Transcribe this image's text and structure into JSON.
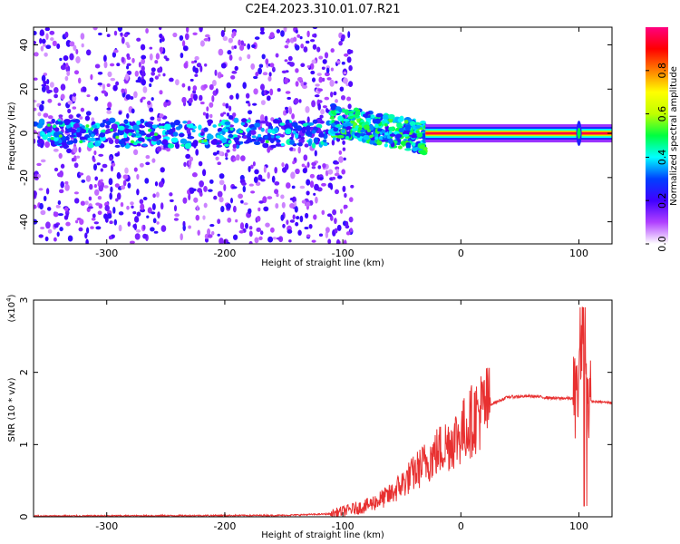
{
  "title": "C2E4.2023.310.01.07.R21",
  "chart_data": [
    {
      "type": "heatmap",
      "xlabel": "Height of straight line (km)",
      "ylabel": "Frequency (Hz)",
      "xlim": [
        -362,
        128
      ],
      "ylim": [
        -50,
        48
      ],
      "xticks": [
        -300,
        -200,
        -100,
        0,
        100
      ],
      "yticks": [
        -40,
        -20,
        0,
        20,
        40
      ],
      "colorbar": {
        "label": "Normalized spectral amplitude",
        "range": [
          0,
          1
        ],
        "ticks": [
          "0.0",
          "0.2",
          "0.4",
          "0.6",
          "0.8"
        ],
        "colormap": [
          "#ffffff",
          "#b040ff",
          "#4000ff",
          "#0040ff",
          "#00ffff",
          "#00ff40",
          "#c0ff00",
          "#ffff00",
          "#ff8000",
          "#ff0000",
          "#ff0080"
        ]
      },
      "features": {
        "noise_region_x": [
          -362,
          -112
        ],
        "broad_spread_x": [
          -110,
          -30
        ],
        "narrow_tone_x": [
          -30,
          128
        ],
        "tone_frequency_hz": 0,
        "spike_x": 100
      }
    },
    {
      "type": "line",
      "xlabel": "Height of straight line (km)",
      "ylabel": "SNR (10 * v/v)",
      "scale_note": "(x10",
      "scale_exp": "4",
      "xlim": [
        -362,
        128
      ],
      "ylim": [
        0,
        3
      ],
      "xticks": [
        -300,
        -200,
        -100,
        0,
        100
      ],
      "yticks": [
        0,
        1,
        2,
        3
      ],
      "color": "#e83030",
      "profile_points": [
        [
          -362,
          0.01
        ],
        [
          -150,
          0.02
        ],
        [
          -110,
          0.04
        ],
        [
          -80,
          0.15
        ],
        [
          -60,
          0.3
        ],
        [
          -40,
          0.6
        ],
        [
          -20,
          0.9
        ],
        [
          0,
          1.15
        ],
        [
          10,
          1.35
        ],
        [
          20,
          1.52
        ],
        [
          40,
          1.66
        ],
        [
          60,
          1.67
        ],
        [
          80,
          1.64
        ],
        [
          95,
          1.64
        ],
        [
          100,
          1.75
        ],
        [
          104,
          2.5
        ],
        [
          108,
          1.6
        ],
        [
          128,
          1.58
        ]
      ]
    }
  ]
}
